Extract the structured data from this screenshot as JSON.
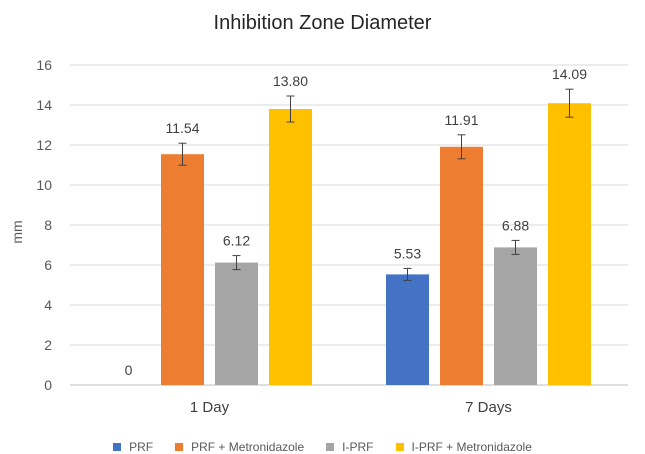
{
  "chart_data": {
    "type": "bar",
    "title": "Inhibition Zone Diameter",
    "xlabel": "",
    "ylabel": "mm",
    "ylim": [
      0,
      16
    ],
    "yticks": [
      0,
      2,
      4,
      6,
      8,
      10,
      12,
      14,
      16
    ],
    "grid": true,
    "legend_position": "bottom",
    "categories": [
      "1 Day",
      "7 Days"
    ],
    "series": [
      {
        "name": "PRF",
        "color": "#4472C4",
        "values": [
          0,
          5.53
        ],
        "errors": [
          0,
          0.3
        ],
        "labels": [
          "0",
          "5.53"
        ]
      },
      {
        "name": "PRF + Metronidazole",
        "color": "#ED7D31",
        "values": [
          11.54,
          11.91
        ],
        "errors": [
          0.55,
          0.6
        ],
        "labels": [
          "11.54",
          "11.91"
        ]
      },
      {
        "name": "I-PRF",
        "color": "#A5A5A5",
        "values": [
          6.12,
          6.88
        ],
        "errors": [
          0.35,
          0.35
        ],
        "labels": [
          "6.12",
          "6.88"
        ]
      },
      {
        "name": "I-PRF + Metronidazole",
        "color": "#FFC000",
        "values": [
          13.8,
          14.09
        ],
        "errors": [
          0.65,
          0.7
        ],
        "labels": [
          "13.80",
          "14.09"
        ]
      }
    ]
  }
}
